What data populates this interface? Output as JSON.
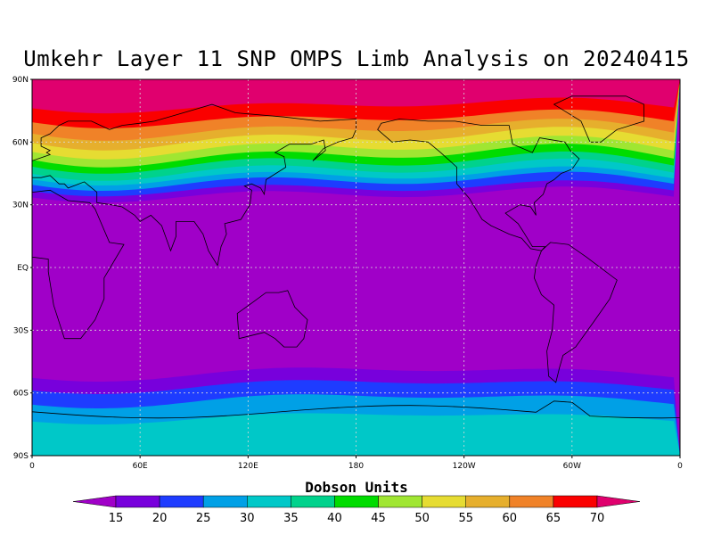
{
  "title": "Umkehr Layer 11 SNP OMPS Limb Analysis on 20240415",
  "lat_labels": [
    "90N",
    "60N",
    "30N",
    "EQ",
    "30S",
    "60S",
    "90S"
  ],
  "lon_labels": [
    "0",
    "60E",
    "120E",
    "180",
    "120W",
    "60W",
    "0"
  ],
  "colorbar": {
    "title": "Dobson Units",
    "ticks": [
      "15",
      "20",
      "25",
      "30",
      "35",
      "40",
      "45",
      "50",
      "55",
      "60",
      "65",
      "70"
    ],
    "colors": [
      "#a000c8",
      "#7800dc",
      "#1e3cff",
      "#00a0e6",
      "#00c8c8",
      "#00d28c",
      "#00dc00",
      "#a0e632",
      "#e6dc32",
      "#e6af2d",
      "#f08228",
      "#fa0000",
      "#e0006e"
    ]
  },
  "field_colors": {
    "c15": "#a000c8",
    "c20": "#7800dc",
    "c25": "#1e3cff",
    "c30": "#00a0e6",
    "c35": "#00c8c8",
    "c40": "#00d28c",
    "c45": "#00dc00",
    "c50": "#a0e632",
    "c55": "#e6dc32",
    "c60": "#e6af2d",
    "c65": "#f08228",
    "c70": "#fa0000",
    "c75": "#e0006e"
  }
}
